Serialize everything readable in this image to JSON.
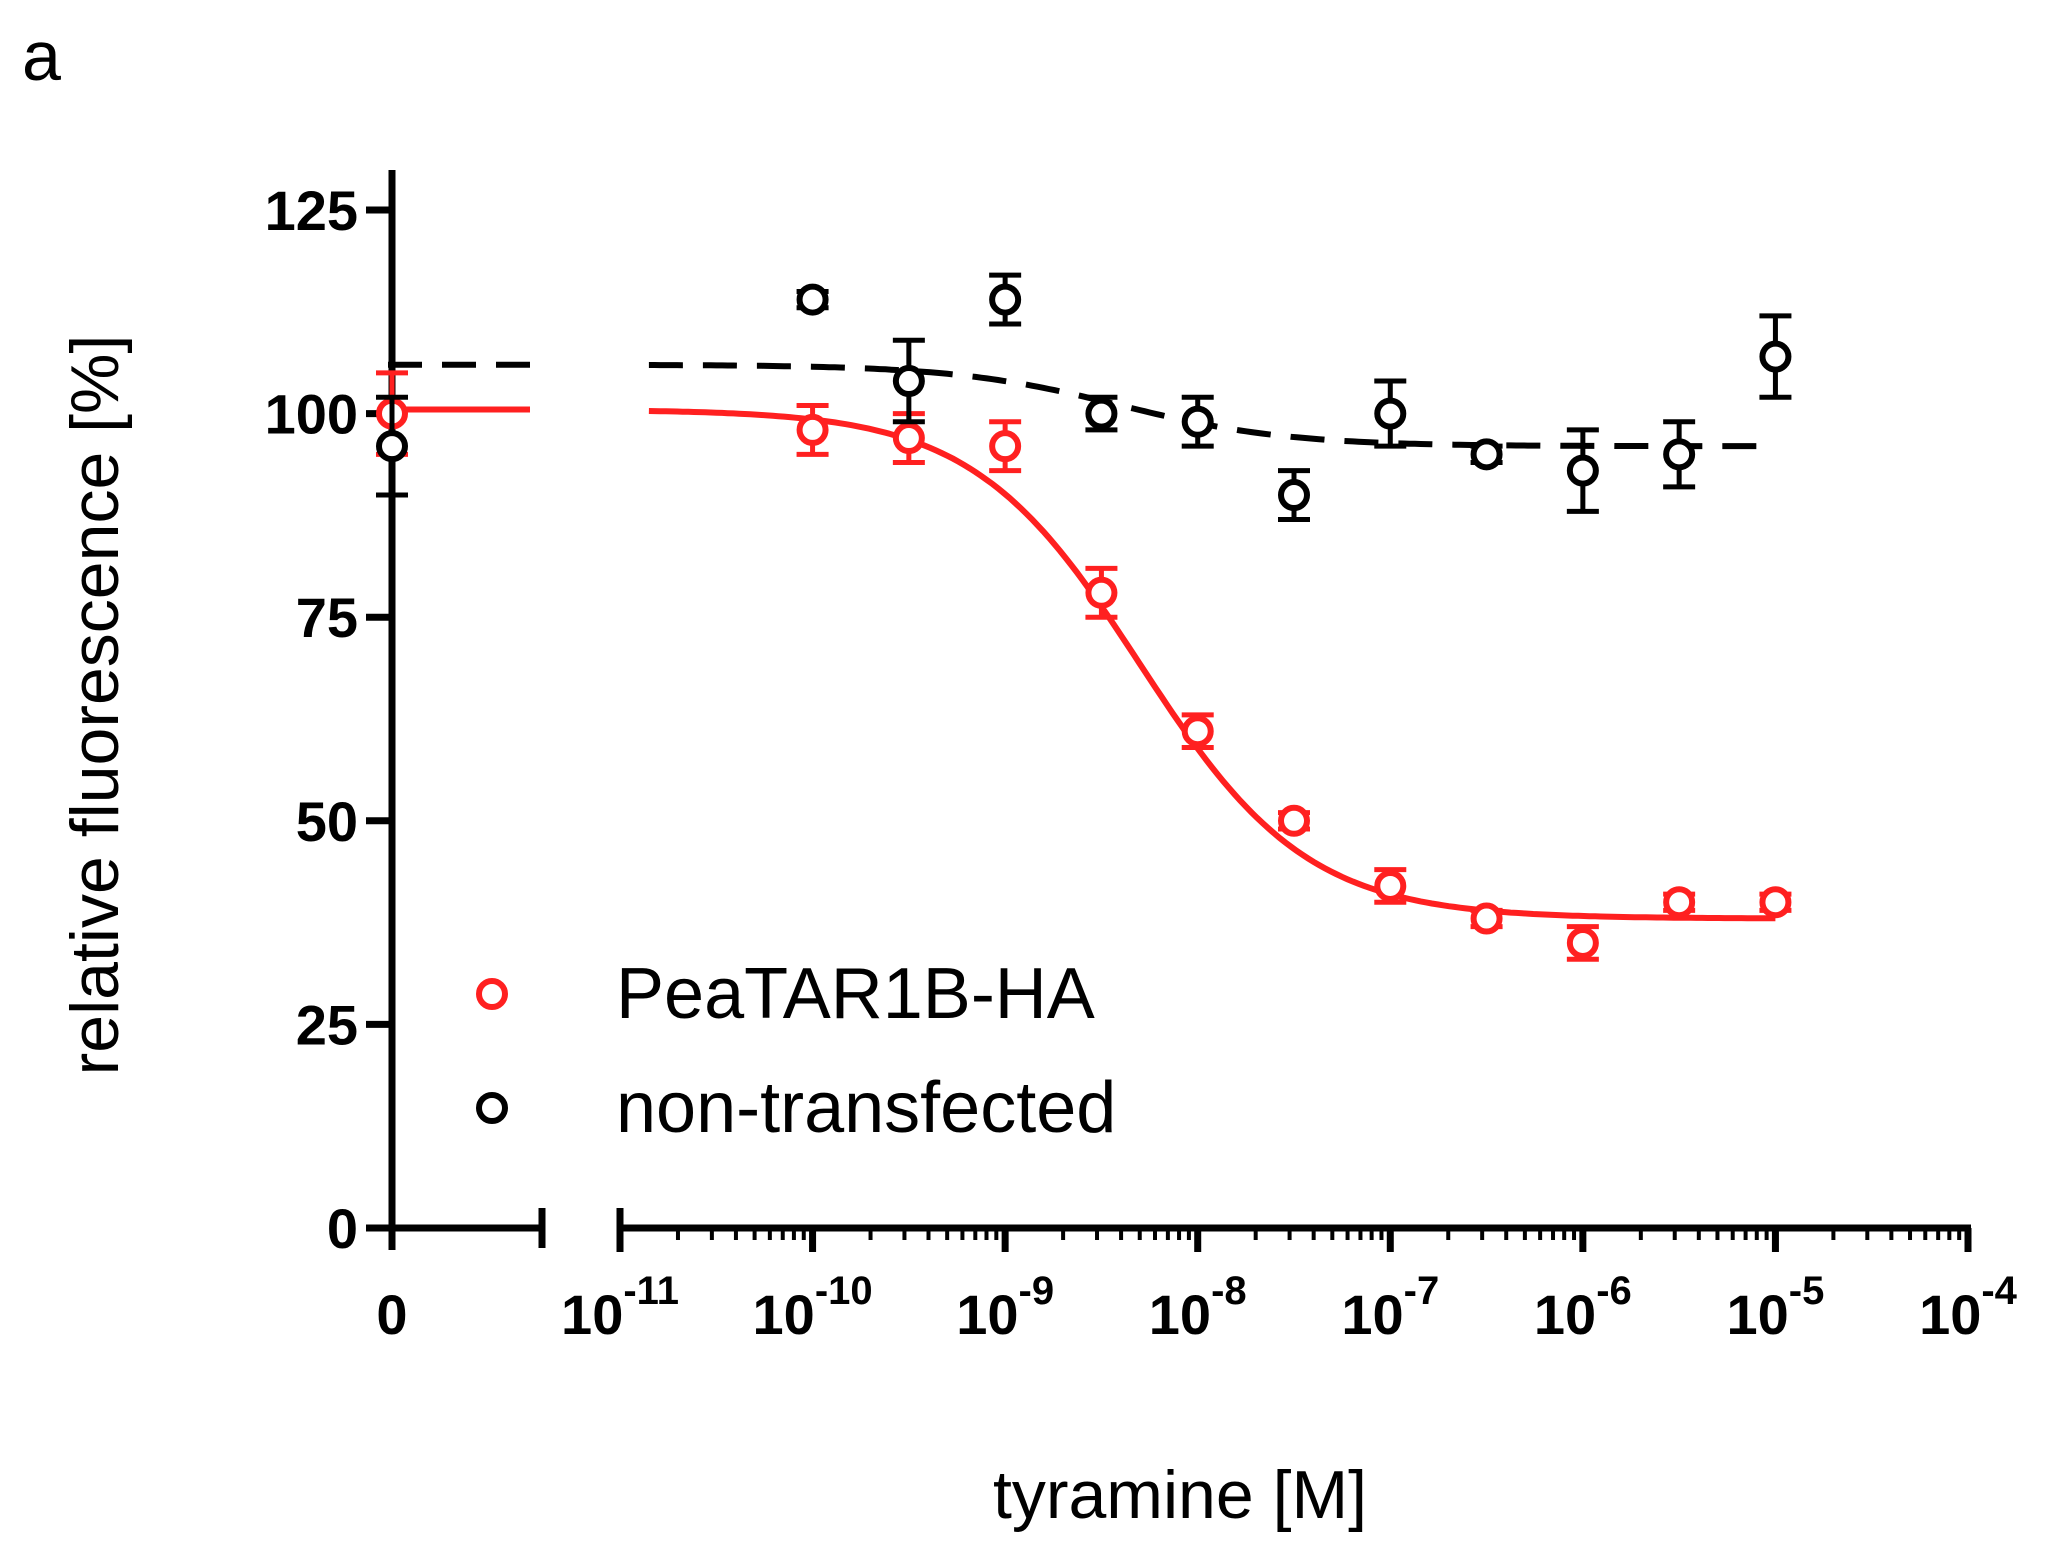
{
  "panel_label": "a",
  "colors": {
    "series_red": "#ff2020",
    "series_black": "#000000"
  },
  "chart_data": {
    "type": "scatter",
    "title": "",
    "xlabel": "tyramine [M]",
    "ylabel": "relative fluorescence [%]",
    "xscale": "log",
    "xlim_log10": [
      -11,
      -4
    ],
    "ylim": [
      0,
      125
    ],
    "yticks": [
      0,
      25,
      50,
      75,
      100,
      125
    ],
    "xtick_zero_label": "0",
    "xtick_base": "10",
    "xticks": [
      {
        "exp": "-11",
        "log10": -11
      },
      {
        "exp": "-10",
        "log10": -10
      },
      {
        "exp": "-9",
        "log10": -9
      },
      {
        "exp": "-8",
        "log10": -8
      },
      {
        "exp": "-7",
        "log10": -7
      },
      {
        "exp": "-6",
        "log10": -6
      },
      {
        "exp": "-5",
        "log10": -5
      },
      {
        "exp": "-4",
        "log10": -4
      }
    ],
    "legend_position": "bottom-left",
    "series": [
      {
        "name": "PeaTAR1B-HA",
        "color": "#ff2020",
        "fit_line": "solid",
        "fit": {
          "top": 100.5,
          "bottom": 38,
          "log_ec50": -8.3,
          "hill": -1.0
        },
        "zero_point": {
          "y": 100,
          "err": 5
        },
        "points": [
          {
            "log10x": -10,
            "y": 98,
            "err": 3
          },
          {
            "log10x": -9.5,
            "y": 97,
            "err": 3
          },
          {
            "log10x": -9,
            "y": 96,
            "err": 3
          },
          {
            "log10x": -8.5,
            "y": 78,
            "err": 3
          },
          {
            "log10x": -8,
            "y": 61,
            "err": 2
          },
          {
            "log10x": -7.5,
            "y": 50,
            "err": 1
          },
          {
            "log10x": -7,
            "y": 42,
            "err": 2
          },
          {
            "log10x": -6.5,
            "y": 38,
            "err": 1
          },
          {
            "log10x": -6,
            "y": 35,
            "err": 2
          },
          {
            "log10x": -5.5,
            "y": 40,
            "err": 1
          },
          {
            "log10x": -5,
            "y": 40,
            "err": 1
          }
        ]
      },
      {
        "name": "non-transfected",
        "color": "#000000",
        "fit_line": "dashed",
        "fit": {
          "top": 106,
          "bottom": 96,
          "log_ec50": -8.4,
          "hill": -1.0
        },
        "zero_point": {
          "y": 96,
          "err": 6
        },
        "points": [
          {
            "log10x": -10,
            "y": 114,
            "err": 1
          },
          {
            "log10x": -9.5,
            "y": 104,
            "err": 5
          },
          {
            "log10x": -9,
            "y": 114,
            "err": 3
          },
          {
            "log10x": -8.5,
            "y": 100,
            "err": 2
          },
          {
            "log10x": -8,
            "y": 99,
            "err": 3
          },
          {
            "log10x": -7.5,
            "y": 90,
            "err": 3
          },
          {
            "log10x": -7,
            "y": 100,
            "err": 4
          },
          {
            "log10x": -6.5,
            "y": 95,
            "err": 1
          },
          {
            "log10x": -6,
            "y": 93,
            "err": 5
          },
          {
            "log10x": -5.5,
            "y": 95,
            "err": 4
          },
          {
            "log10x": -5,
            "y": 107,
            "err": 5
          }
        ]
      }
    ]
  }
}
